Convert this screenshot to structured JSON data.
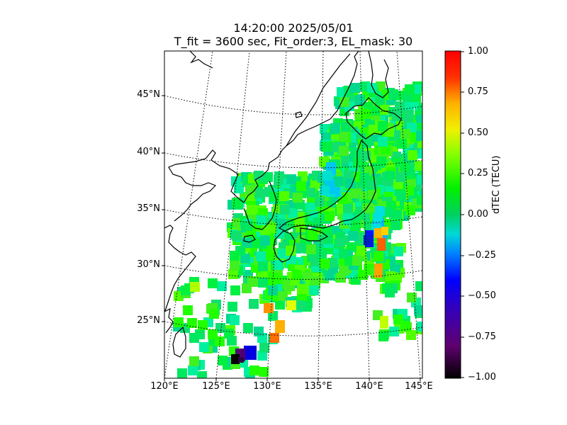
{
  "title": {
    "line1": "14:20:00 2025/05/01",
    "line2": "T_fit = 3600 sec, Fit_order:3, EL_mask: 30"
  },
  "map": {
    "lon_labels": [
      "120°E",
      "125°E",
      "130°E",
      "135°E",
      "140°E",
      "145°E"
    ],
    "lat_labels": [
      "25°N",
      "30°N",
      "35°N",
      "40°N",
      "45°N"
    ]
  },
  "colorbar": {
    "label": "dTEC (TECU)",
    "ticks": [
      "1.00",
      "0.75",
      "0.50",
      "0.25",
      "0.00",
      "−0.25",
      "−0.50",
      "−0.75",
      "−1.00"
    ],
    "min": -1.0,
    "max": 1.0
  },
  "chart_data": {
    "type": "heatmap",
    "title": "14:20:00 2025/05/01",
    "subtitle": "T_fit = 3600 sec, Fit_order:3, EL_mask: 30",
    "xlim": [
      120,
      145
    ],
    "ylim": [
      20,
      49
    ],
    "value_range": [
      -1.0,
      1.0
    ],
    "colorbar_label": "dTEC (TECU)",
    "colormap": "nipy_spectral-like",
    "notes_visible": [
      "Most cells near 0.0 to 0.25 (green)",
      "Negative patch near 140°E 32°N (blue)",
      "Positive patch near 141°E 32°N (orange)",
      "Strong negative cells near 127°E 21°N (dark)"
    ]
  }
}
